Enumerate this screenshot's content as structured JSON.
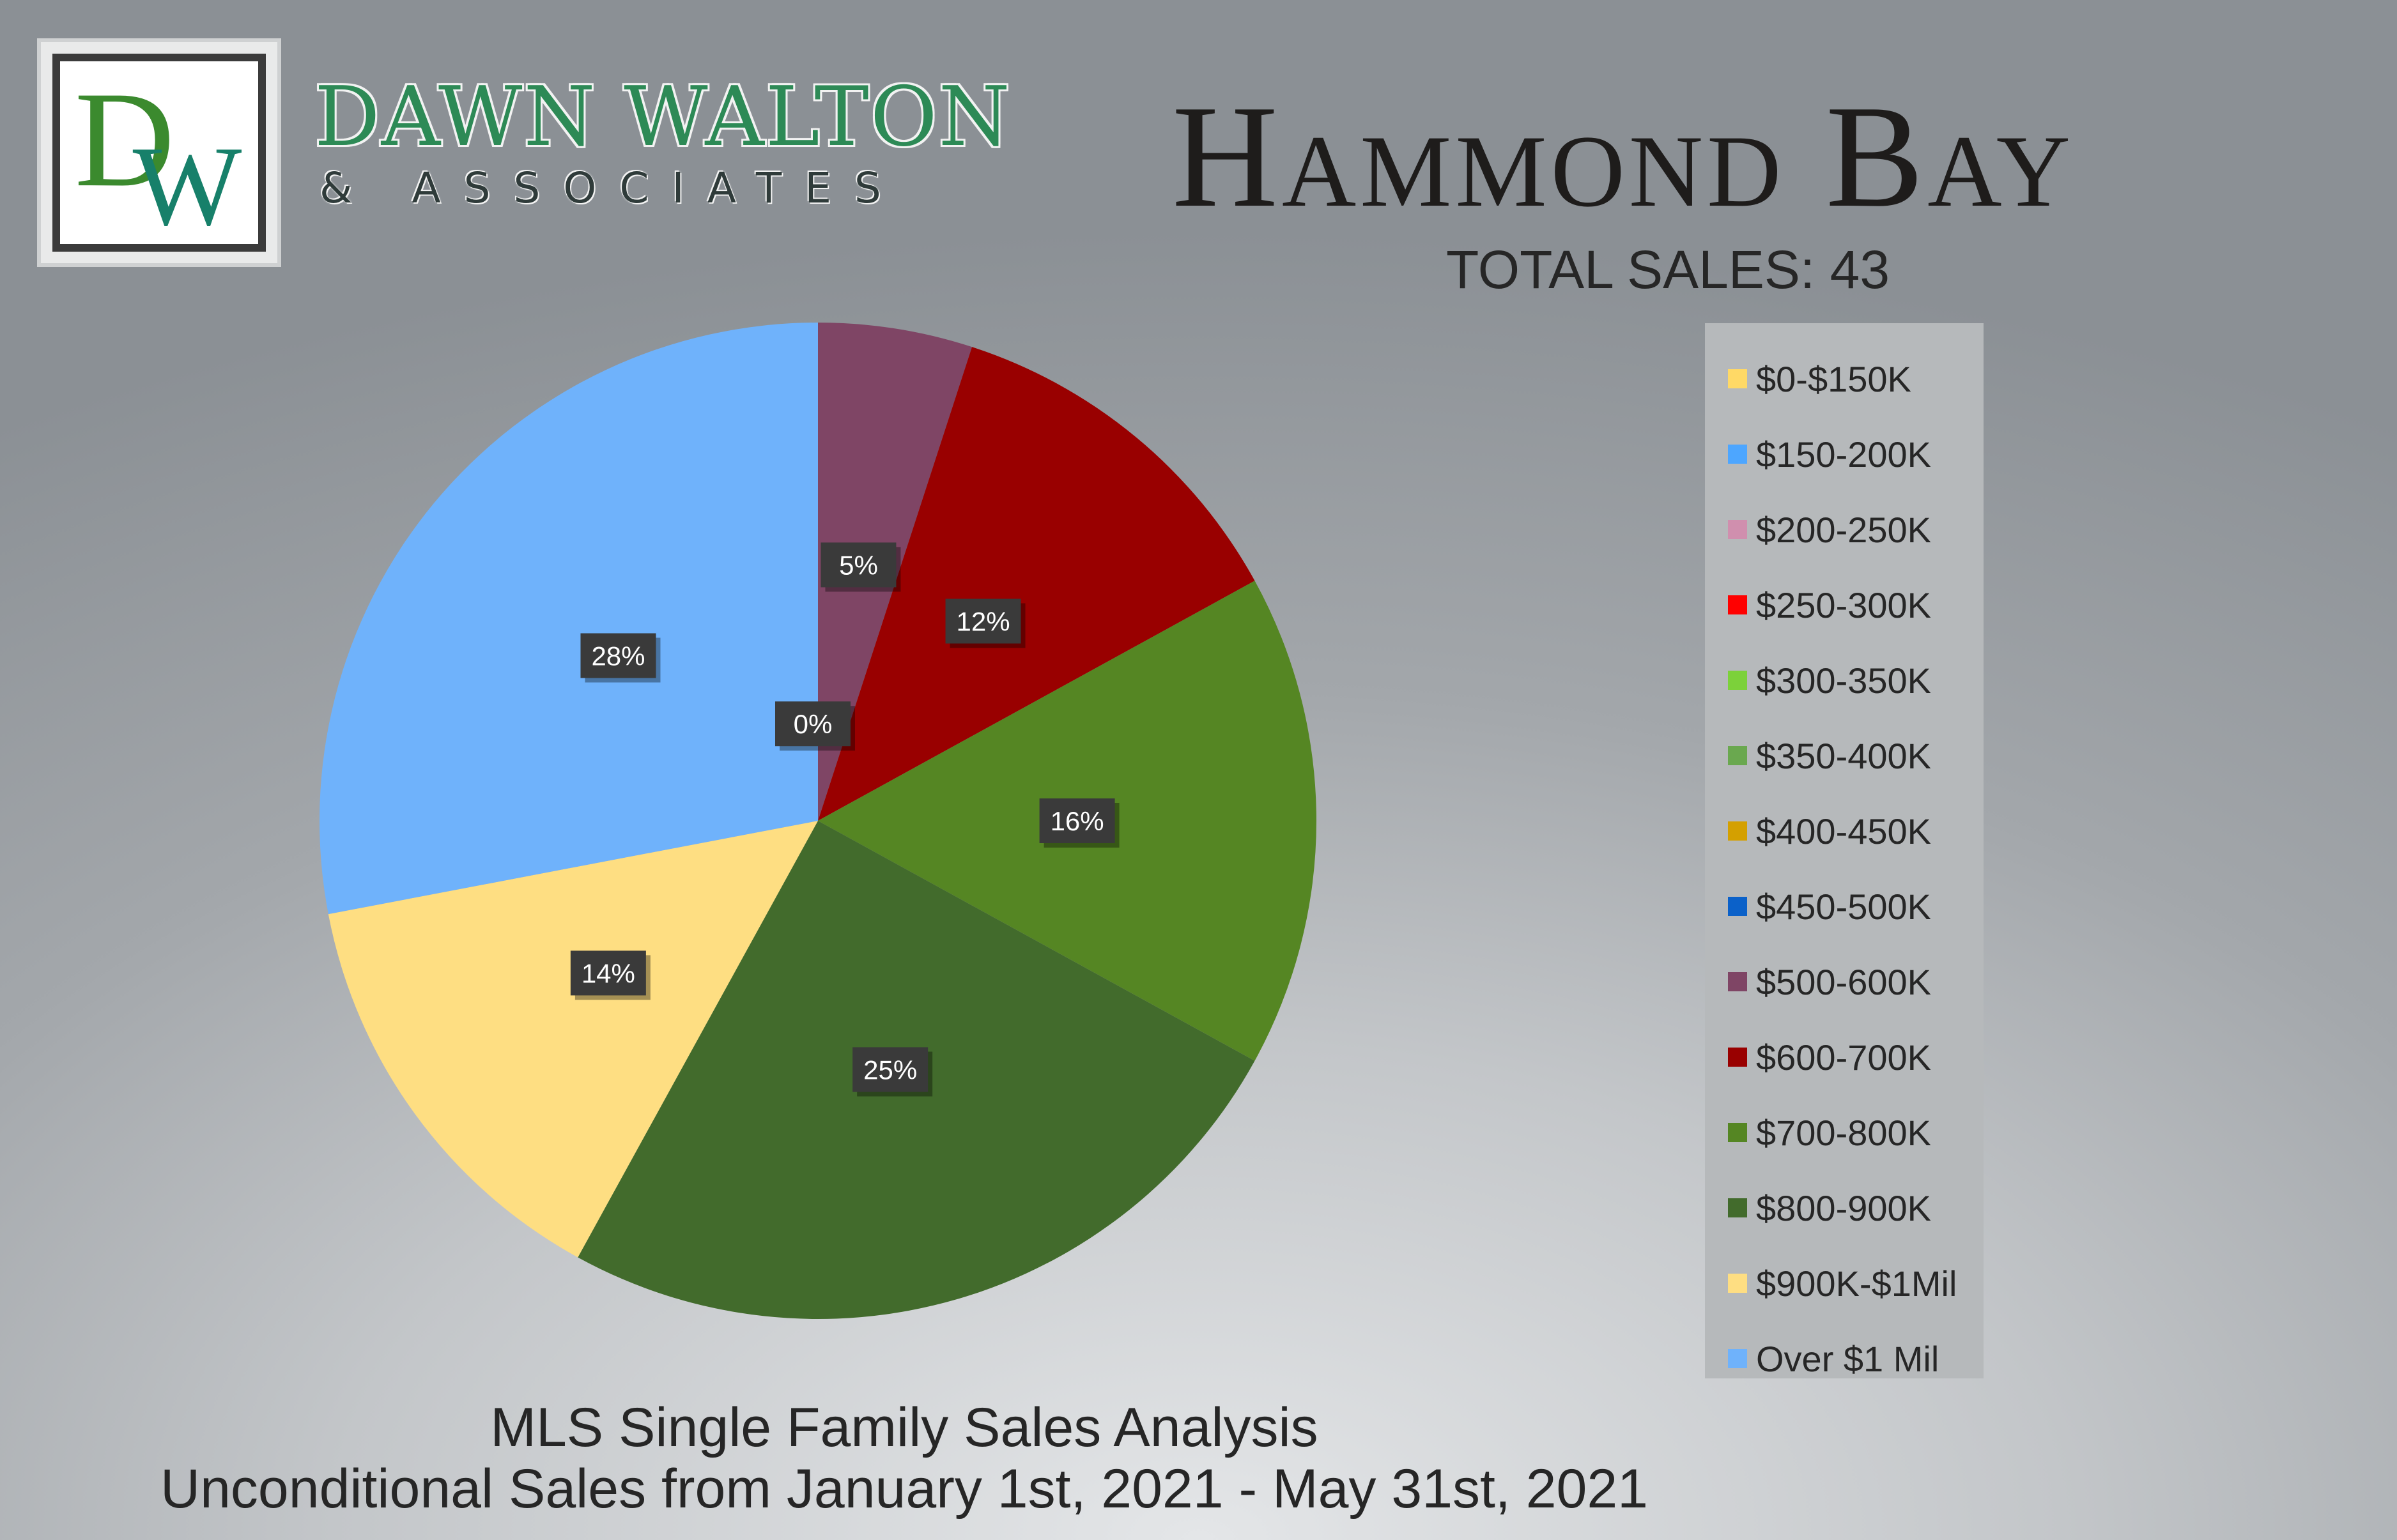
{
  "brand": {
    "name": "DAWN WALTON",
    "subtitle": "& ASSOCIATES",
    "monogram": "DW",
    "logo_colors": {
      "d": "#3b8a2e",
      "w": "#17806a",
      "frame": "#3b3b3b"
    }
  },
  "header": {
    "title": "Hammond Bay",
    "total_sales": "TOTAL SALES: 43"
  },
  "footer": {
    "line1": "MLS Single Family Sales Analysis",
    "line2": "Unconditional Sales from January 1st, 2021 - May 31st, 2021"
  },
  "chart_data": {
    "type": "pie",
    "title": "Hammond Bay",
    "legend_position": "right",
    "categories": [
      "$0-$150K",
      "$150-200K",
      "$200-250K",
      "$250-300K",
      "$300-350K",
      "$350-400K",
      "$400-450K",
      "$450-500K",
      "$500-600K",
      "$600-700K",
      "$700-800K",
      "$800-900K",
      "$900K-$1Mil",
      "Over $1 Mil"
    ],
    "values": [
      0,
      0,
      0,
      0,
      0,
      0,
      0,
      0,
      5,
      12,
      16,
      25,
      14,
      28
    ],
    "labels": [
      "",
      "",
      "",
      "",
      "",
      "",
      "",
      "0%",
      "5%",
      "12%",
      "16%",
      "25%",
      "14%",
      "28%"
    ],
    "colors": [
      "#ffd966",
      "#4da6ff",
      "#d08fae",
      "#ff0000",
      "#7cd13a",
      "#6aa84f",
      "#d4a000",
      "#0b61c9",
      "#7f4565",
      "#990000",
      "#558623",
      "#426b2c",
      "#fede82",
      "#6fb2fb"
    ]
  }
}
